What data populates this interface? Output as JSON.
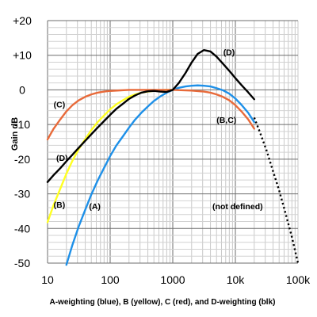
{
  "chart_data": {
    "type": "line",
    "caption": "A-weighting (blue), B (yellow), C (red), and D-weighting (blk)",
    "xlabel": "",
    "ylabel": "Gain dB",
    "xscale": "log",
    "xlim": [
      10,
      100000
    ],
    "ylim": [
      -50,
      20
    ],
    "x_ticks": [
      {
        "value": 10,
        "label": "10"
      },
      {
        "value": 100,
        "label": "100"
      },
      {
        "value": 1000,
        "label": "1000"
      },
      {
        "value": 10000,
        "label": "10k"
      },
      {
        "value": 100000,
        "label": "100k"
      }
    ],
    "y_ticks": [
      {
        "value": 20,
        "label": "+20"
      },
      {
        "value": 10,
        "label": "+10"
      },
      {
        "value": 0,
        "label": "0"
      },
      {
        "value": -10,
        "label": "-10"
      },
      {
        "value": -20,
        "label": "-20"
      },
      {
        "value": -30,
        "label": "-30"
      },
      {
        "value": -40,
        "label": "-40"
      },
      {
        "value": -50,
        "label": "-50"
      }
    ],
    "grid": true,
    "series": [
      {
        "key": "A",
        "label": "(A)",
        "color": "#1e90e8",
        "style": "solid",
        "x": [
          20,
          25,
          31.5,
          40,
          50,
          63,
          80,
          100,
          125,
          160,
          200,
          250,
          315,
          400,
          500,
          630,
          800,
          1000,
          1250,
          1600,
          2000,
          2500,
          3150,
          4000,
          5000,
          6300,
          8000,
          10000,
          12500,
          16000,
          20000
        ],
        "y": [
          -50.5,
          -44.7,
          -39.4,
          -34.6,
          -30.2,
          -26.2,
          -22.5,
          -19.1,
          -16.1,
          -13.4,
          -10.9,
          -8.6,
          -6.6,
          -4.8,
          -3.2,
          -1.9,
          -0.8,
          0,
          0.6,
          1.0,
          1.2,
          1.3,
          1.2,
          1.0,
          0.5,
          -0.1,
          -1.1,
          -2.5,
          -4.3,
          -6.6,
          -9.3
        ]
      },
      {
        "key": "B",
        "label": "(B)",
        "color": "#ffff22",
        "style": "solid",
        "x": [
          10,
          12.5,
          16,
          20,
          25,
          31.5,
          40,
          50,
          63,
          80,
          100,
          125,
          160,
          200,
          250,
          315,
          400,
          500,
          630,
          800,
          1000
        ],
        "y": [
          -38.2,
          -33.2,
          -28.5,
          -24.2,
          -20.4,
          -17.1,
          -14.2,
          -11.6,
          -9.3,
          -7.4,
          -5.6,
          -4.2,
          -3.0,
          -2.0,
          -1.3,
          -0.8,
          -0.5,
          -0.3,
          -0.1,
          0,
          0
        ]
      },
      {
        "key": "C",
        "label": "(C)",
        "color": "#e86a3a",
        "style": "solid",
        "x": [
          10,
          12.5,
          16,
          20,
          25,
          31.5,
          40,
          50,
          63,
          80,
          100,
          200,
          500,
          1000,
          2000,
          3150,
          4000,
          5000,
          6300,
          8000,
          10000,
          12500,
          16000,
          20000
        ],
        "y": [
          -14.3,
          -11.2,
          -8.5,
          -6.2,
          -4.4,
          -3.0,
          -2.0,
          -1.3,
          -0.8,
          -0.5,
          -0.3,
          0,
          0,
          0,
          -0.2,
          -0.5,
          -0.8,
          -1.3,
          -2.0,
          -3.0,
          -4.4,
          -6.2,
          -8.5,
          -11.2
        ]
      },
      {
        "key": "D",
        "label": "(D)",
        "color": "#000000",
        "style": "solid",
        "x": [
          10,
          12.5,
          16,
          20,
          25,
          31.5,
          40,
          50,
          63,
          80,
          100,
          125,
          160,
          200,
          250,
          315,
          400,
          500,
          630,
          800,
          1000,
          1250,
          1600,
          2000,
          2500,
          3150,
          4000,
          5000,
          6300,
          8000,
          10000,
          12500,
          16000,
          20000
        ],
        "y": [
          -26.6,
          -24.6,
          -22.6,
          -20.6,
          -18.7,
          -16.7,
          -14.7,
          -12.8,
          -10.9,
          -9.0,
          -7.2,
          -5.5,
          -4.0,
          -2.6,
          -1.6,
          -0.8,
          -0.4,
          -0.3,
          -0.5,
          -0.6,
          0,
          2.0,
          4.9,
          7.9,
          10.4,
          11.5,
          11.1,
          9.6,
          7.6,
          5.5,
          3.4,
          1.4,
          -0.7,
          -2.7
        ]
      },
      {
        "key": "D_extension",
        "label": "",
        "color": "#000000",
        "style": "dotted",
        "x": [
          20000,
          25000,
          31500,
          40000,
          50000,
          63000,
          80000,
          100000
        ],
        "y": [
          -8.0,
          -12.5,
          -17.5,
          -23.5,
          -29.0,
          -35.5,
          -42.5,
          -50.0
        ]
      }
    ],
    "annotations": [
      {
        "text": "(C)",
        "x": 12.5,
        "y": -5
      },
      {
        "text": "(D)",
        "x": 13.8,
        "y": -20.5
      },
      {
        "text": "(B)",
        "x": 12.5,
        "y": -34
      },
      {
        "text": "(A)",
        "x": 46,
        "y": -34.5
      },
      {
        "text": "(D)",
        "x": 6400,
        "y": 10
      },
      {
        "text": "(B,C)",
        "x": 5000,
        "y": -9.5
      },
      {
        "text": "(not defined)",
        "x": 4300,
        "y": -34.5
      }
    ]
  }
}
